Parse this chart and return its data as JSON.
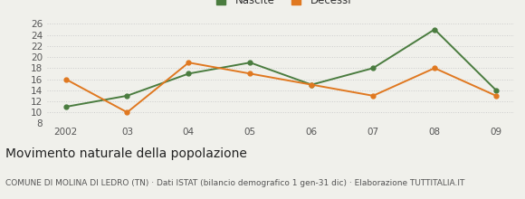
{
  "years": [
    2002,
    2003,
    2004,
    2005,
    2006,
    2007,
    2008,
    2009
  ],
  "x_labels": [
    "2002",
    "03",
    "04",
    "05",
    "06",
    "07",
    "08",
    "09"
  ],
  "nascite": [
    11,
    13,
    17,
    19,
    15,
    18,
    25,
    14
  ],
  "decessi": [
    16,
    10,
    19,
    17,
    15,
    13,
    18,
    13
  ],
  "nascite_color": "#4a7c3f",
  "decessi_color": "#e07820",
  "ylim": [
    8,
    26
  ],
  "yticks": [
    8,
    10,
    12,
    14,
    16,
    18,
    20,
    22,
    24,
    26
  ],
  "title": "Movimento naturale della popolazione",
  "subtitle": "COMUNE DI MOLINA DI LEDRO (TN) · Dati ISTAT (bilancio demografico 1 gen-31 dic) · Elaborazione TUTTITALIA.IT",
  "legend_nascite": "Nascite",
  "legend_decessi": "Decessi",
  "background_color": "#f0f0eb",
  "grid_color": "#cccccc",
  "title_fontsize": 10,
  "subtitle_fontsize": 6.5,
  "tick_fontsize": 7.5,
  "legend_fontsize": 8.5
}
